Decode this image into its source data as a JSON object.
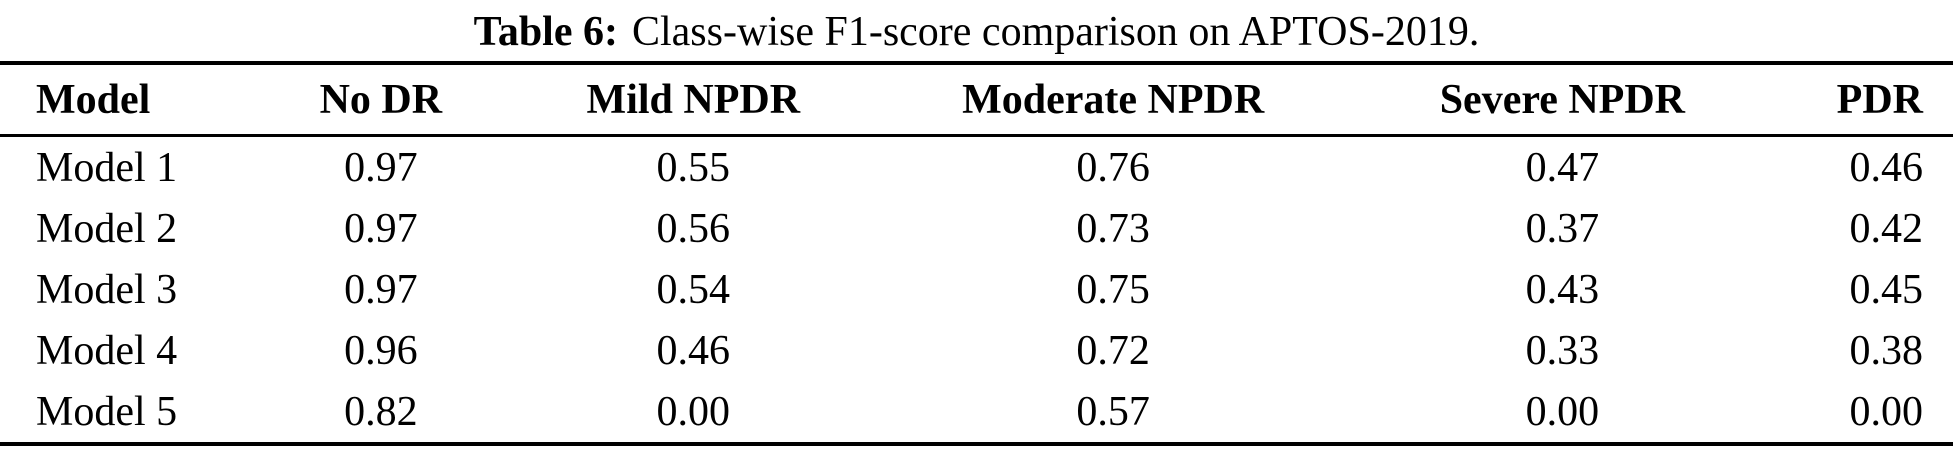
{
  "page": {
    "background_color": "#ffffff",
    "text_color": "#000000"
  },
  "caption": {
    "label": "Table 6:",
    "text": "Class-wise F1-score comparison on APTOS-2019."
  },
  "table": {
    "columns": [
      "Model",
      "No DR",
      "Mild NPDR",
      "Moderate NPDR",
      "Severe NPDR",
      "PDR"
    ],
    "rows": [
      [
        "Model 1",
        "0.97",
        "0.55",
        "0.76",
        "0.47",
        "0.46"
      ],
      [
        "Model 2",
        "0.97",
        "0.56",
        "0.73",
        "0.37",
        "0.42"
      ],
      [
        "Model 3",
        "0.97",
        "0.54",
        "0.75",
        "0.43",
        "0.45"
      ],
      [
        "Model 4",
        "0.96",
        "0.46",
        "0.72",
        "0.33",
        "0.38"
      ],
      [
        "Model 5",
        "0.82",
        "0.00",
        "0.57",
        "0.00",
        "0.00"
      ]
    ]
  },
  "chart_data": {
    "type": "table",
    "title": "Table 6: Class-wise F1-score comparison on APTOS-2019.",
    "columns": [
      "Model",
      "No DR",
      "Mild NPDR",
      "Moderate NPDR",
      "Severe NPDR",
      "PDR"
    ],
    "rows": [
      [
        "Model 1",
        0.97,
        0.55,
        0.76,
        0.47,
        0.46
      ],
      [
        "Model 2",
        0.97,
        0.56,
        0.73,
        0.37,
        0.42
      ],
      [
        "Model 3",
        0.97,
        0.54,
        0.75,
        0.43,
        0.45
      ],
      [
        "Model 4",
        0.96,
        0.46,
        0.72,
        0.33,
        0.38
      ],
      [
        "Model 5",
        0.82,
        0.0,
        0.57,
        0.0,
        0.0
      ]
    ]
  }
}
